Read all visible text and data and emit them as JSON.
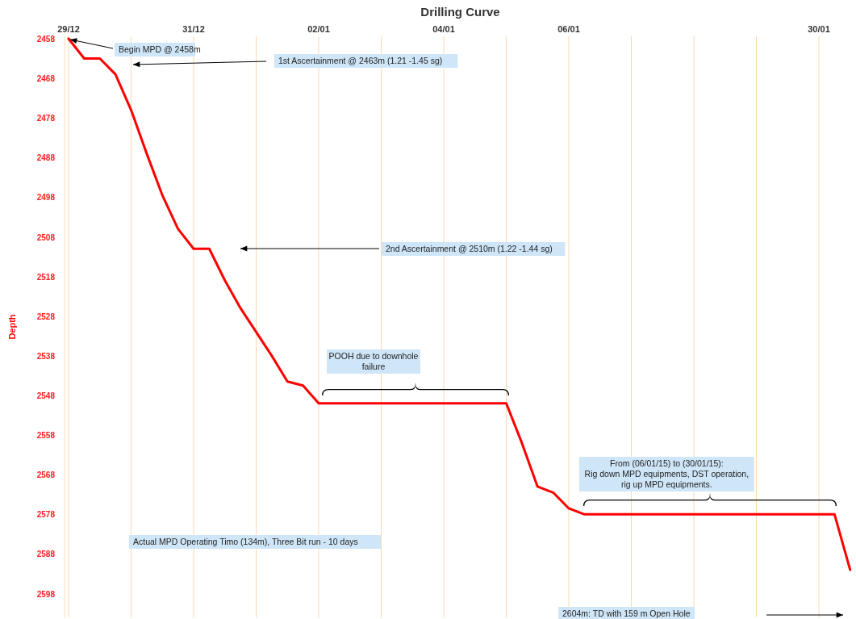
{
  "chart_data": {
    "type": "line",
    "title": "Drilling Curve",
    "ylabel": "Depth",
    "categories": [
      "29/12",
      null,
      null,
      null,
      null,
      null,
      null,
      null,
      "31/12",
      null,
      null,
      null,
      null,
      null,
      null,
      null,
      "02/01",
      null,
      null,
      null,
      null,
      null,
      null,
      null,
      "04/01",
      null,
      null,
      null,
      null,
      null,
      null,
      null,
      "06/01",
      null,
      null,
      null,
      null,
      null,
      null,
      null,
      null,
      null,
      null,
      null,
      null,
      null,
      null,
      null,
      "30/01",
      null,
      null
    ],
    "series": [
      {
        "color": "#ff0000",
        "values": [
          2458,
          2463,
          2463,
          2467,
          2476,
          2487,
          2497.5,
          2506,
          2511,
          2511,
          2519,
          2526,
          2532,
          2538,
          2544.5,
          2545.5,
          2550,
          2550,
          2550,
          2550,
          2550,
          2550,
          2550,
          2550,
          2550,
          2550,
          2550,
          2550,
          2550,
          2560,
          2571,
          2572.5,
          2576.5,
          2578,
          2578,
          2578,
          2578,
          2578,
          2578,
          2578,
          2578,
          2578,
          2578,
          2578,
          2578,
          2578,
          2578,
          2578,
          2578,
          2578,
          2592
        ]
      }
    ],
    "ylim": [
      2604,
      2457.4
    ],
    "yticks": [
      2458,
      2468,
      2478,
      2488,
      2498,
      2508,
      2518,
      2528,
      2538,
      2548,
      2558,
      2568,
      2578,
      2588,
      2598
    ],
    "grid": "x",
    "marker": "none",
    "line_style": "solid",
    "annotations": [
      {
        "text": "Begin MPD @ 2458m",
        "x": "29/12",
        "y": 2458
      },
      "1st Ascertainment @ 2463m (1.21 -1.45 sg)",
      "2nd Ascertainment @ 2510m (1.22 -1.44 sg)",
      "POOH due to downhole\nfailure",
      "From (06/01/15) to (30/01/15):\nRig down MPD equipments, DST operation,\nrig up MPD equipments.",
      "Actual MPD Operating Timo (134m), Three Bit run - 10 days",
      "2604m: TD with 159 m Open Hole"
    ]
  }
}
